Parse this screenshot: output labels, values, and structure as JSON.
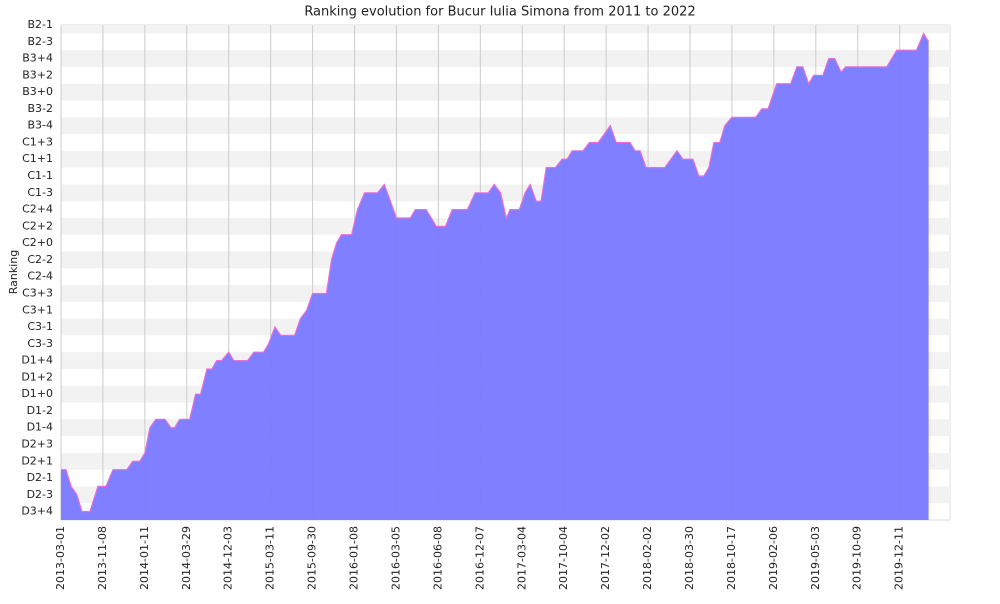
{
  "chart_data": {
    "type": "area",
    "title": "Ranking evolution for Bucur Iulia Simona from 2011 to 2022",
    "y_label": "Ranking",
    "fill_color": "#7878ff",
    "line_color": "#e76fd6",
    "grid": true,
    "x": [
      0,
      1.2,
      2.4,
      3.8,
      5,
      6.9,
      8.8,
      10.7,
      12.4,
      15.7,
      17.1,
      18.8,
      20,
      21.2,
      22.6,
      24.8,
      26.2,
      27.1,
      28.3,
      30.7,
      32.1,
      33.3,
      34.8,
      36,
      37.1,
      38.3,
      40,
      41.2,
      44.5,
      46,
      48.3,
      49.5,
      51,
      52.4,
      55.7,
      57.1,
      58.6,
      60,
      63.3,
      64.5,
      65.7,
      66.9,
      69.3,
      70.7,
      72.4,
      75.5,
      77.1,
      80,
      83.3,
      84.5,
      87.1,
      89.5,
      91.7,
      93.3,
      96.9,
      98.8,
      101.9,
      103.3,
      104.8,
      106.2,
      107.1,
      109.3,
      110.7,
      111.9,
      113.3,
      114.5,
      115.7,
      117.9,
      119.5,
      120.7,
      121.9,
      124.5,
      126,
      128.1,
      131,
      132.4,
      135.7,
      136.9,
      138.1,
      139.5,
      144,
      146.9,
      148.3,
      150.7,
      152.1,
      153.3,
      154.5,
      155.7,
      157.1,
      158.3,
      160,
      165.7,
      167.1,
      168.6,
      170.7,
      174,
      175.5,
      176.9,
      178.3,
      179.5,
      181.7,
      183.1,
      184.5,
      186,
      187.1,
      196.9,
      199.3,
      204,
      205.7,
      206.9
    ],
    "values": [
      2.5,
      2.5,
      1.5,
      1,
      0,
      0,
      1.5,
      1.5,
      2.5,
      2.5,
      3,
      3,
      3.5,
      5,
      5.5,
      5.5,
      5,
      5,
      5.5,
      5.5,
      7,
      7,
      8.5,
      8.5,
      9,
      9,
      9.5,
      9,
      9,
      9.5,
      9.5,
      10,
      11,
      10.5,
      10.5,
      11.5,
      12,
      13,
      13,
      15,
      16,
      16.5,
      16.5,
      18,
      19,
      19,
      19.5,
      17.5,
      17.5,
      18,
      18,
      17,
      17,
      18,
      18,
      19,
      19,
      19.5,
      19,
      17.5,
      18,
      18,
      19,
      19.5,
      18.5,
      18.5,
      20.5,
      20.5,
      21,
      21,
      21.5,
      21.5,
      22,
      22,
      23,
      22,
      22,
      21.5,
      21.5,
      20.5,
      20.5,
      21.5,
      21,
      21,
      20,
      20,
      20.5,
      22,
      22,
      23,
      23.5,
      23.5,
      24,
      24,
      25.5,
      25.5,
      26.5,
      26.5,
      25.5,
      26,
      26,
      27,
      27,
      26.2,
      26.5,
      26.5,
      27.5,
      27.5,
      28.5,
      28
    ],
    "xlim": [
      0,
      212
    ],
    "xticks": [
      {
        "value": 0,
        "label": "2013-03-01"
      },
      {
        "value": 10,
        "label": "2013-11-08"
      },
      {
        "value": 20,
        "label": "2014-01-11"
      },
      {
        "value": 30,
        "label": "2014-03-29"
      },
      {
        "value": 40,
        "label": "2014-12-03"
      },
      {
        "value": 50,
        "label": "2015-03-11"
      },
      {
        "value": 60,
        "label": "2015-09-30"
      },
      {
        "value": 70,
        "label": "2016-01-08"
      },
      {
        "value": 80,
        "label": "2016-03-05"
      },
      {
        "value": 90,
        "label": "2016-06-08"
      },
      {
        "value": 100,
        "label": "2016-12-07"
      },
      {
        "value": 110,
        "label": "2017-03-04"
      },
      {
        "value": 120,
        "label": "2017-10-04"
      },
      {
        "value": 130,
        "label": "2017-12-02"
      },
      {
        "value": 140,
        "label": "2018-02-02"
      },
      {
        "value": 150,
        "label": "2018-03-30"
      },
      {
        "value": 160,
        "label": "2018-10-17"
      },
      {
        "value": 170,
        "label": "2019-02-06"
      },
      {
        "value": 180,
        "label": "2019-05-03"
      },
      {
        "value": 190,
        "label": "2019-10-09"
      },
      {
        "value": 200,
        "label": "2019-12-11"
      }
    ],
    "ylim": [
      -0.5,
      29
    ],
    "yticks": [
      {
        "value": 0,
        "label": "D3+4"
      },
      {
        "value": 1,
        "label": "D2-3"
      },
      {
        "value": 2,
        "label": "D2-1"
      },
      {
        "value": 3,
        "label": "D2+1"
      },
      {
        "value": 4,
        "label": "D2+3"
      },
      {
        "value": 5,
        "label": "D1-4"
      },
      {
        "value": 6,
        "label": "D1-2"
      },
      {
        "value": 7,
        "label": "D1+0"
      },
      {
        "value": 8,
        "label": "D1+2"
      },
      {
        "value": 9,
        "label": "D1+4"
      },
      {
        "value": 10,
        "label": "C3-3"
      },
      {
        "value": 11,
        "label": "C3-1"
      },
      {
        "value": 12,
        "label": "C3+1"
      },
      {
        "value": 13,
        "label": "C3+3"
      },
      {
        "value": 14,
        "label": "C2-4"
      },
      {
        "value": 15,
        "label": "C2-2"
      },
      {
        "value": 16,
        "label": "C2+0"
      },
      {
        "value": 17,
        "label": "C2+2"
      },
      {
        "value": 18,
        "label": "C2+4"
      },
      {
        "value": 19,
        "label": "C1-3"
      },
      {
        "value": 20,
        "label": "C1-1"
      },
      {
        "value": 21,
        "label": "C1+1"
      },
      {
        "value": 22,
        "label": "C1+3"
      },
      {
        "value": 23,
        "label": "B3-4"
      },
      {
        "value": 24,
        "label": "B3-2"
      },
      {
        "value": 25,
        "label": "B3+0"
      },
      {
        "value": 26,
        "label": "B3+2"
      },
      {
        "value": 27,
        "label": "B3+4"
      },
      {
        "value": 28,
        "label": "B2-3"
      },
      {
        "value": 29,
        "label": "B2-1"
      }
    ]
  }
}
